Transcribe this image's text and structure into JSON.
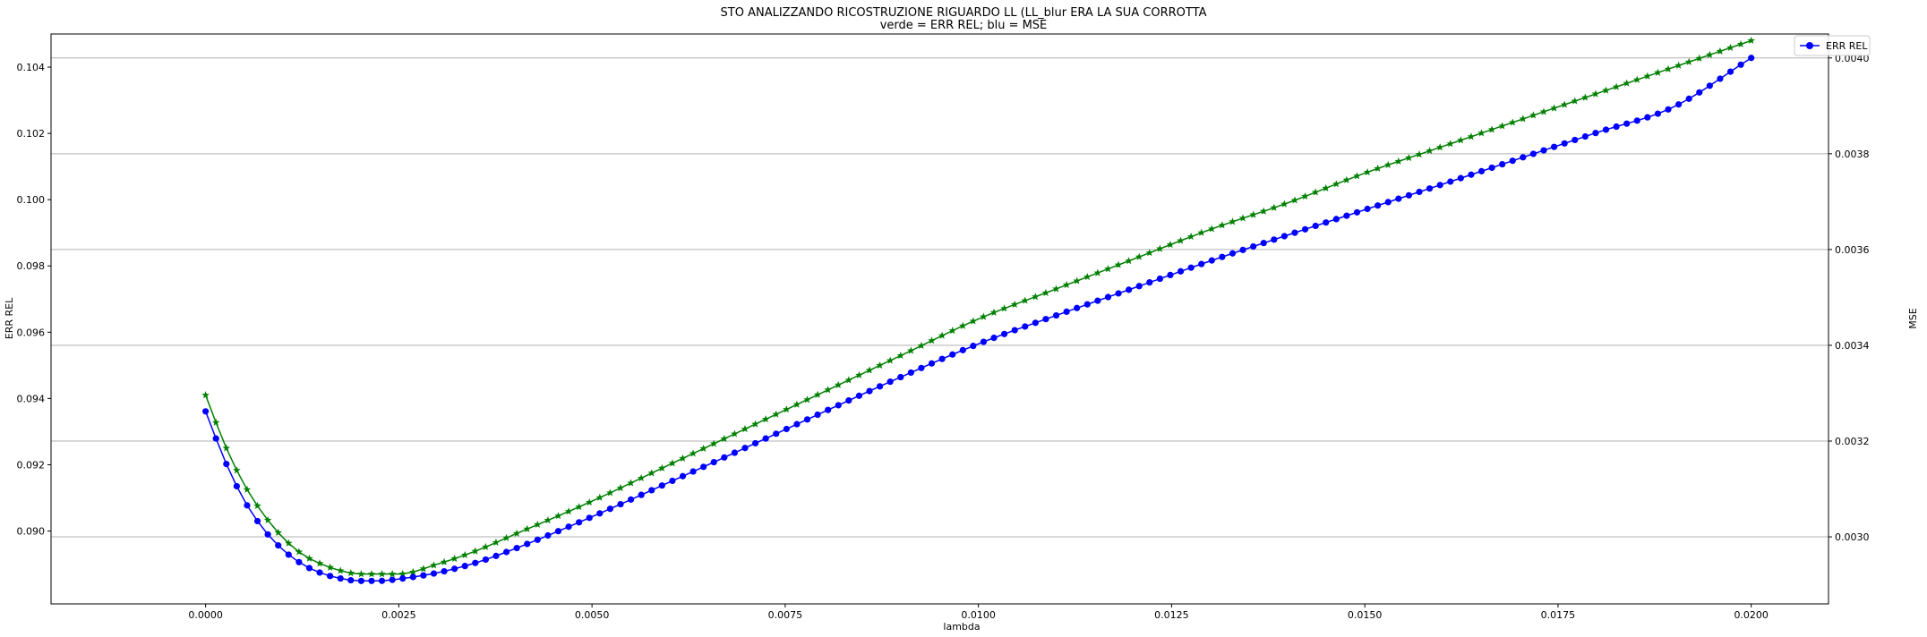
{
  "chart_data": {
    "type": "line",
    "title": "STO ANALIZZANDO RICOSTRUZIONE RIGUARDO LL (LL_blur ERA LA SUA CORROTTA",
    "subtitle": "verde = ERR REL; blu = MSE",
    "xlabel": "lambda",
    "ylabel_left": "ERR REL",
    "ylabel_right": "MSE",
    "xlim": [
      -0.002,
      0.021
    ],
    "ylim_left": [
      0.0878,
      0.105
    ],
    "ylim_right": [
      0.00286,
      0.00405
    ],
    "x_ticks": [
      "0.0000",
      "0.0025",
      "0.0050",
      "0.0075",
      "0.0100",
      "0.0125",
      "0.0150",
      "0.0175",
      "0.0200"
    ],
    "y_ticks_left": [
      "0.090",
      "0.092",
      "0.094",
      "0.096",
      "0.098",
      "0.100",
      "0.102",
      "0.104"
    ],
    "y_ticks_right": [
      "0.0030",
      "0.0032",
      "0.0034",
      "0.0036",
      "0.0038",
      "0.0040"
    ],
    "grid": "horizontal (right axis)",
    "legend": {
      "position": "top-right",
      "entries": [
        "ERR REL"
      ]
    },
    "x_range": {
      "start": 0.0,
      "end": 0.02,
      "count": 150
    },
    "series": [
      {
        "name": "ERR REL (verde)",
        "axis": "left",
        "color": "#008000",
        "marker": "star",
        "knots_x": [
          0.0,
          0.00025,
          0.0005,
          0.00075,
          0.001,
          0.00125,
          0.0015,
          0.00175,
          0.002,
          0.00225,
          0.0025,
          0.003,
          0.0035,
          0.004,
          0.005,
          0.006,
          0.007,
          0.008,
          0.009,
          0.01,
          0.011,
          0.012,
          0.013,
          0.014,
          0.015,
          0.016,
          0.017,
          0.018,
          0.019,
          0.02
        ],
        "knots_y": [
          0.0941,
          0.0926,
          0.0914,
          0.0905,
          0.0898,
          0.0893,
          0.089,
          0.0888,
          0.0887,
          0.0887,
          0.0887,
          0.089,
          0.0894,
          0.0899,
          0.0909,
          0.092,
          0.0931,
          0.0942,
          0.0953,
          0.0964,
          0.0973,
          0.0982,
          0.0991,
          0.0999,
          0.1008,
          0.1016,
          0.1024,
          0.1032,
          0.104,
          0.1048
        ]
      },
      {
        "name": "MSE (blu)",
        "axis": "right",
        "color": "#0000ff",
        "marker": "circle",
        "knots_x": [
          0.0,
          0.00025,
          0.0005,
          0.00075,
          0.001,
          0.00125,
          0.0015,
          0.00175,
          0.002,
          0.00225,
          0.0025,
          0.003,
          0.0035,
          0.004,
          0.005,
          0.006,
          0.007,
          0.008,
          0.009,
          0.01,
          0.011,
          0.012,
          0.013,
          0.014,
          0.015,
          0.016,
          0.017,
          0.018,
          0.019,
          0.02
        ],
        "knots_y": [
          0.003262,
          0.003159,
          0.003076,
          0.003016,
          0.002973,
          0.002943,
          0.002924,
          0.002913,
          0.002908,
          0.002908,
          0.002912,
          0.002925,
          0.002946,
          0.002975,
          0.003042,
          0.003114,
          0.003187,
          0.003261,
          0.003334,
          0.003403,
          0.003462,
          0.003519,
          0.003576,
          0.00363,
          0.003683,
          0.003736,
          0.00379,
          0.003844,
          0.003898,
          0.004
        ]
      }
    ]
  }
}
